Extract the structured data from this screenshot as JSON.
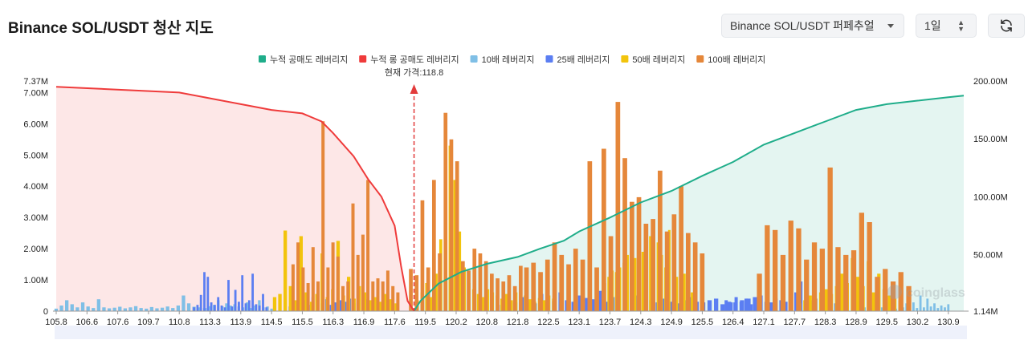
{
  "header": {
    "title": "Binance SOL/USDT 청산 지도",
    "exchange_select": "Binance SOL/USDT 퍼페추얼",
    "period_select": "1일",
    "refresh_icon": "refresh-icon"
  },
  "watermark": "coinglass",
  "chart_data": {
    "type": "bar",
    "title": "Binance SOL/USDT 청산 지도",
    "current_price_label": "현재 가격:118.8",
    "current_price_category": "118.8",
    "legend": [
      {
        "name": "누적 공매도 레버리지",
        "color": "#1fad8a"
      },
      {
        "name": "누적 롱 공매도 레버리지",
        "color": "#ef3b3b"
      },
      {
        "name": "10배 레버리지",
        "color": "#7fbfe6"
      },
      {
        "name": "25배 레버리지",
        "color": "#5b7ef2"
      },
      {
        "name": "50배 레버리지",
        "color": "#f2c40c"
      },
      {
        "name": "100배 레버리지",
        "color": "#e5873a"
      }
    ],
    "left_axis": {
      "ticks": [
        "0",
        "1.00M",
        "2.00M",
        "3.00M",
        "4.00M",
        "5.00M",
        "6.00M",
        "7.00M",
        "7.37M"
      ],
      "max": 7.37
    },
    "right_axis": {
      "ticks": [
        "1.14M",
        "50.00M",
        "100.00M",
        "150.00M",
        "200.00M"
      ],
      "min": 1.14,
      "max": 200
    },
    "x_tick_labels": [
      "105.8",
      "106.6",
      "107.6",
      "109.7",
      "110.8",
      "113.3",
      "113.9",
      "114.5",
      "115.5",
      "116.3",
      "116.9",
      "117.6",
      "119.5",
      "120.2",
      "120.8",
      "121.8",
      "122.5",
      "123.1",
      "123.7",
      "124.3",
      "124.9",
      "125.5",
      "126.4",
      "127.1",
      "127.7",
      "128.3",
      "128.9",
      "129.5",
      "130.2",
      "130.9"
    ],
    "bar_groups": [
      {
        "name": "10배 레버리지",
        "color": "#7fbfe6",
        "ranges": [
          [
            "105.8",
            "113.3",
            "0.08,0.18,0.35,0.22,0.12,0.28,0.15,0.10,0.38,0.12,0.09,0.11,0.14,0.09,0.12,0.16,0.10,0.08,0.13,0.09,0.11,0.15,0.10,0.18,0.50,0.25,0.14,0.12,0.10,0.16"
          ],
          [
            "113.3",
            "114.5",
            "0.12,0.20,0.35,0.15,0.25,0.18,0.22,0.15,0.12,0.28,0.10,0.18,0.35,0.12,0.15,0.08"
          ],
          [
            "129.0",
            "130.9",
            "0.08,0.12,0.35,0.10,0.15,0.20,0.12,0.30,0.10,0.35,0.08,0.18,0.12,0.25,0.15,0.28,0.10,0.50,0.12,0.40,0.15,0.25,0.10,0.18,0.12,0.22"
          ]
        ]
      },
      {
        "name": "25배 레버리지",
        "color": "#5b7ef2",
        "ranges": [
          [
            "112.0",
            "114.4",
            "0.12,0.20,0.52,1.25,1.10,0.28,0.20,0.45,0.18,0.12,1.00,0.15,0.68,0.30,1.15,0.25,0.35,1.20,0.22,0.18,0.55,0.12"
          ],
          [
            "115.1",
            "117.2",
            "0.15,0.22,0.28,0.35,0.20,0.45,0.30,0.25,0.38,0.20,0.28,0.35,0.30,0.40,0.25,0.32,0.20,0.38,0.28,0.30"
          ],
          [
            "121.3",
            "126.9",
            "0.20,0.35,0.28,0.45,0.30,0.25,0.55,0.40,0.32,0.60,0.35,0.30,0.50,0.42,0.38,0.65,0.30,0.45,0.55,0.40,0.35,0.50,0.60,0.35,0.28,0.40,0.30,0.25,0.35,0.45,0.30,0.28,0.35,0.40,0.22,0.30,0.28,0.35,0.40,0.45"
          ],
          [
            "126.2",
            "128.6",
            "0.35,0.28,0.45,0.30,0.40,0.22,0.35,0.50,0.30,0.28,0.40,0.35,0.30,0.45,0.60,0.95,0.50,0.35,0.40,0.30,0.35,0.28,0.25,0.20"
          ]
        ]
      },
      {
        "name": "50배 레버리지",
        "color": "#f2c40c",
        "ranges": [
          [
            "114.6",
            "117.7",
            "0.45,0.55,2.58,0.80,0.35,2.40,0.60,0.30,0.55,1.85,0.45,0.70,2.25,0.50,1.10,0.40,0.80,0.60,0.35,0.45,0.30,0.55,0.38,0.25"
          ],
          [
            "119.0",
            "122.6",
            "0.35,0.60,0.90,0.45,1.20,2.30,1.30,5.30,4.20,2.55,1.40,0.90,0.70,0.55,0.45,0.70,0.60,0.50,0.40,0.55,0.35,0.60,0.45,0.50,0.38,0.30,0.42,0.35,0.50,0.40"
          ],
          [
            "123.6",
            "125.3",
            "0.90,1.10,1.30,1.25,1.40,1.55,1.80,2.10,1.70,2.30,1.90,1.60,2.40,1.50,2.20,1.80,1.40,2.60,1.30,1.10,0.90,1.20,0.80,0.60"
          ],
          [
            "127.8",
            "129.8",
            "0.25,0.35,0.50,0.40,0.60,0.70,0.55,0.80,1.20,0.90,1.70,1.10,0.80,1.60,0.60,1.20,0.70,0.50,0.40,0.35"
          ]
        ]
      },
      {
        "name": "100배 레버리지",
        "color": "#e5873a",
        "ranges": [
          [
            "115.2",
            "117.8",
            "1.50,2.20,1.40,0.90,2.05,0.95,6.08,1.40,2.20,1.75,0.80,0.95,3.45,1.80,2.45,4.20,0.95,1.05,0.95,1.30,0.80,0.60"
          ],
          [
            "118.6",
            "122.0",
            "1.35,1.15,3.55,1.40,4.20,1.85,6.35,5.50,4.80,1.60,1.30,2.00,1.85,1.60,1.20,1.05,0.95,1.15,0.80,1.45,0.70"
          ],
          [
            "122.0",
            "125.5",
            "1.40,1.55,1.25,1.65,2.20,1.80,1.50,2.00,1.65,4.80,1.40,5.20,2.40,6.70,4.90,3.50,3.65,2.80,2.95,4.50,2.55,3.10,4.00,2.50,2.20,1.85"
          ],
          [
            "127.0",
            "130.0",
            "1.20,2.75,2.60,1.80,2.90,2.65,1.65,2.20,2.00,4.60,2.05,1.80,1.95,3.15,2.85,1.10,1.35,0.95,1.25,0.80"
          ]
        ]
      }
    ],
    "long_cumulative": {
      "name": "누적 롱 공매도 레버리지",
      "points": [
        [
          "105.8",
          195
        ],
        [
          "110.8",
          190
        ],
        [
          "113.3",
          185
        ],
        [
          "113.9",
          180
        ],
        [
          "114.5",
          175
        ],
        [
          "115.5",
          172
        ],
        [
          "116.0",
          165
        ],
        [
          "116.3",
          155
        ],
        [
          "116.7",
          135
        ],
        [
          "117.0",
          115
        ],
        [
          "117.3",
          100
        ],
        [
          "117.6",
          75
        ],
        [
          "118.0",
          40
        ],
        [
          "118.4",
          10
        ],
        [
          "118.8",
          1.14
        ]
      ]
    },
    "short_cumulative": {
      "name": "누적 공매도 레버리지",
      "points": [
        [
          "118.8",
          1.14
        ],
        [
          "119.2",
          10
        ],
        [
          "119.8",
          25
        ],
        [
          "120.3",
          35
        ],
        [
          "120.8",
          42
        ],
        [
          "121.8",
          48
        ],
        [
          "122.3",
          55
        ],
        [
          "122.8",
          62
        ],
        [
          "123.1",
          70
        ],
        [
          "123.7",
          82
        ],
        [
          "124.3",
          95
        ],
        [
          "124.9",
          105
        ],
        [
          "125.5",
          118
        ],
        [
          "126.4",
          130
        ],
        [
          "127.1",
          145
        ],
        [
          "127.7",
          155
        ],
        [
          "128.3",
          165
        ],
        [
          "128.9",
          175
        ],
        [
          "129.5",
          180
        ],
        [
          "130.2",
          183
        ],
        [
          "130.9",
          186
        ]
      ]
    }
  }
}
